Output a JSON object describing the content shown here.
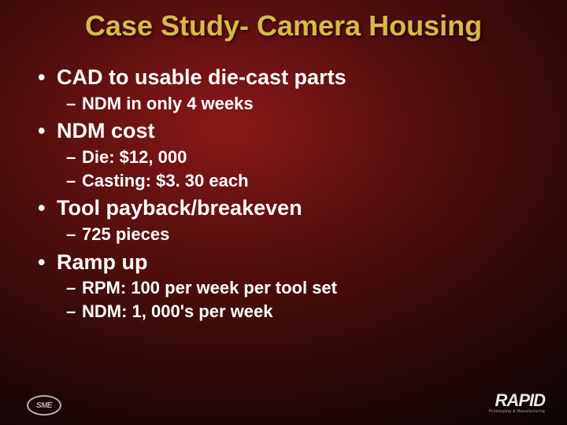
{
  "title": "Case Study- Camera Housing",
  "bullets": {
    "b1": "CAD to usable die-cast parts",
    "b1_s1": "NDM in only 4 weeks",
    "b2": "NDM cost",
    "b2_s1": "Die: $12, 000",
    "b2_s2": "Casting: $3. 30 each",
    "b3": "Tool payback/breakeven",
    "b3_s1": "725 pieces",
    "b4": " Ramp up",
    "b4_s1": "RPM: 100 per week per tool set",
    "b4_s2": "NDM: 1, 000's per week"
  },
  "logos": {
    "sme": "SME",
    "rapid": "RAPID",
    "rapid_sub": "Prototyping & Manufacturing"
  },
  "style": {
    "title_color": "#d9b84a",
    "text_color": "#ffffff",
    "title_fontsize": 36,
    "l1_fontsize": 27,
    "l2_fontsize": 22,
    "bg_gradient_center": "#8a1818",
    "bg_gradient_mid": "#2a0808",
    "bg_gradient_edge": "#000000"
  }
}
